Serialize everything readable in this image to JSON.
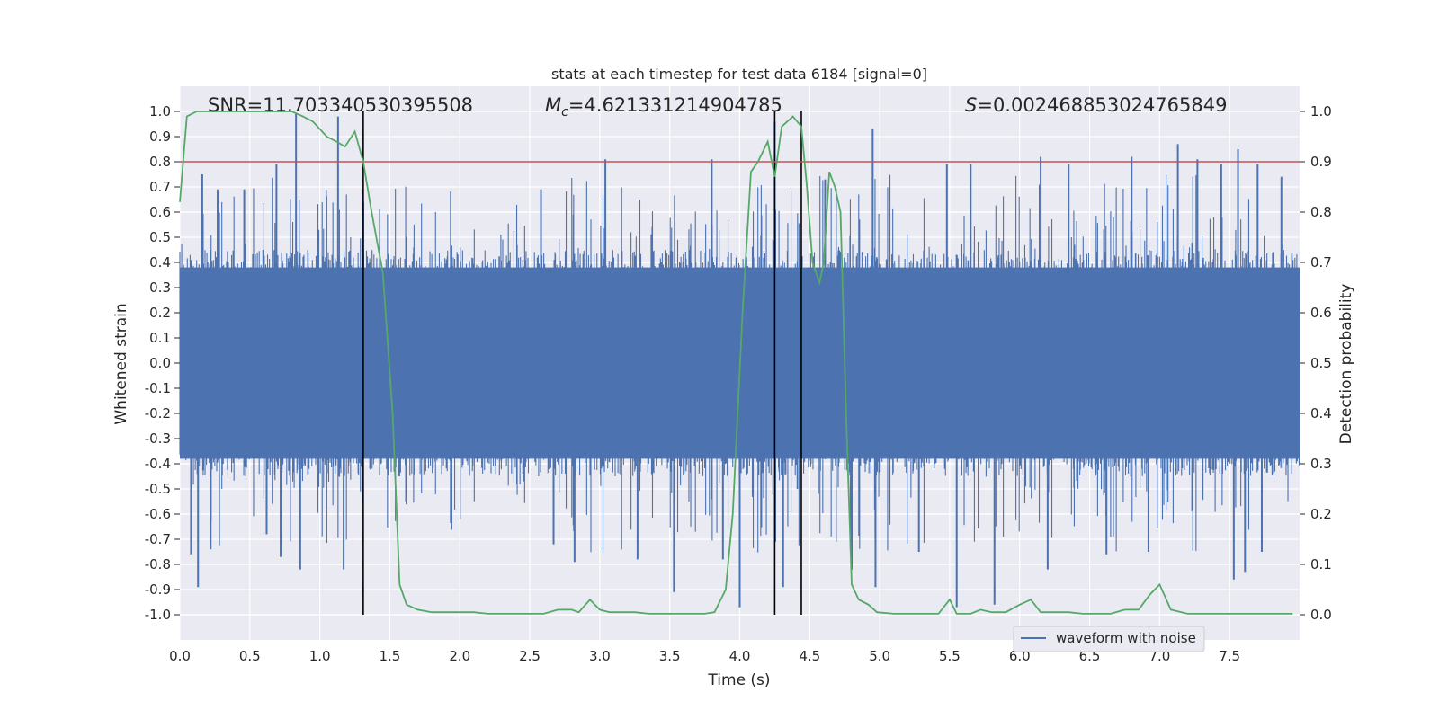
{
  "chart_data": {
    "type": "line",
    "title": "stats at each timestep for test data 6184 [signal=0]",
    "xlabel": "Time (s)",
    "ylabel": "Whitened strain",
    "ylabel_right": "Detection probability",
    "xlim": [
      0.0,
      8.0
    ],
    "ylim": [
      -1.1,
      1.1
    ],
    "ylim_right": [
      -0.05,
      1.05
    ],
    "x_ticks": [
      "0.0",
      "0.5",
      "1.0",
      "1.5",
      "2.0",
      "2.5",
      "3.0",
      "3.5",
      "4.0",
      "4.5",
      "5.0",
      "5.5",
      "6.0",
      "6.5",
      "7.0",
      "7.5"
    ],
    "y_ticks": [
      "-1.0",
      "-0.9",
      "-0.8",
      "-0.7",
      "-0.6",
      "-0.5",
      "-0.4",
      "-0.3",
      "-0.2",
      "-0.1",
      "0.0",
      "0.1",
      "0.2",
      "0.3",
      "0.4",
      "0.5",
      "0.6",
      "0.7",
      "0.8",
      "0.9",
      "1.0"
    ],
    "y_ticks_right": [
      "0.0",
      "0.1",
      "0.2",
      "0.3",
      "0.4",
      "0.5",
      "0.6",
      "0.7",
      "0.8",
      "0.9",
      "1.0"
    ],
    "grid": true,
    "legend_position": "lower-right",
    "annotations": {
      "snr": "SNR=11.703340530395508",
      "mc_symbol": "M",
      "mc_sub": "c",
      "mc_value": "=4.621331214904785",
      "s_symbol": "S",
      "s_value": "=0.002468853024765849"
    },
    "threshold": {
      "value": 0.9,
      "axis": "right",
      "color": "#c44e52"
    },
    "markers": {
      "x": [
        1.31,
        4.25,
        4.44
      ],
      "color": "#000000"
    },
    "series": [
      {
        "name": "waveform with noise",
        "axis": "left",
        "color": "#4c72b0",
        "envelope_typical": 0.45,
        "envelope_peak_max": 1.0,
        "spikes": [
          {
            "x": 0.08,
            "y": -0.76
          },
          {
            "x": 0.13,
            "y": -0.89
          },
          {
            "x": 0.16,
            "y": 0.75
          },
          {
            "x": 0.22,
            "y": -0.74
          },
          {
            "x": 0.27,
            "y": 0.69
          },
          {
            "x": 0.46,
            "y": 0.69
          },
          {
            "x": 0.62,
            "y": -0.68
          },
          {
            "x": 0.69,
            "y": 0.79
          },
          {
            "x": 0.72,
            "y": -0.77
          },
          {
            "x": 0.83,
            "y": 0.99
          },
          {
            "x": 0.86,
            "y": -0.82
          },
          {
            "x": 1.13,
            "y": 0.98
          },
          {
            "x": 1.17,
            "y": -0.82
          },
          {
            "x": 1.31,
            "y": 0.64
          },
          {
            "x": 2.58,
            "y": 0.69
          },
          {
            "x": 2.67,
            "y": -0.72
          },
          {
            "x": 2.82,
            "y": -0.79
          },
          {
            "x": 3.04,
            "y": 0.81
          },
          {
            "x": 3.27,
            "y": -0.78
          },
          {
            "x": 3.53,
            "y": -0.91
          },
          {
            "x": 3.8,
            "y": 0.81
          },
          {
            "x": 3.88,
            "y": -0.78
          },
          {
            "x": 4.0,
            "y": -0.97
          },
          {
            "x": 4.25,
            "y": 0.96
          },
          {
            "x": 4.31,
            "y": -0.89
          },
          {
            "x": 4.61,
            "y": 0.73
          },
          {
            "x": 4.8,
            "y": -0.82
          },
          {
            "x": 4.95,
            "y": 0.93
          },
          {
            "x": 4.97,
            "y": -0.89
          },
          {
            "x": 5.28,
            "y": -0.75
          },
          {
            "x": 5.48,
            "y": 0.79
          },
          {
            "x": 5.55,
            "y": -0.97
          },
          {
            "x": 5.65,
            "y": 0.79
          },
          {
            "x": 5.82,
            "y": -0.96
          },
          {
            "x": 6.15,
            "y": 0.82
          },
          {
            "x": 6.2,
            "y": -0.82
          },
          {
            "x": 6.35,
            "y": 0.79
          },
          {
            "x": 6.62,
            "y": -0.76
          },
          {
            "x": 6.8,
            "y": 0.82
          },
          {
            "x": 6.92,
            "y": -0.75
          },
          {
            "x": 7.13,
            "y": 0.87
          },
          {
            "x": 7.27,
            "y": 0.81
          },
          {
            "x": 7.44,
            "y": 0.79
          },
          {
            "x": 7.53,
            "y": -0.86
          },
          {
            "x": 7.56,
            "y": 0.85
          },
          {
            "x": 7.61,
            "y": -0.83
          },
          {
            "x": 7.7,
            "y": 0.79
          },
          {
            "x": 7.73,
            "y": -0.75
          },
          {
            "x": 7.87,
            "y": 0.74
          }
        ]
      },
      {
        "name": "Detection probability",
        "axis": "right",
        "color": "#55a868",
        "x": [
          0.0,
          0.05,
          0.12,
          0.2,
          0.4,
          0.6,
          0.8,
          0.88,
          0.95,
          1.05,
          1.12,
          1.18,
          1.25,
          1.31,
          1.37,
          1.45,
          1.52,
          1.57,
          1.62,
          1.7,
          1.8,
          1.9,
          2.0,
          2.1,
          2.2,
          2.3,
          2.4,
          2.5,
          2.6,
          2.7,
          2.8,
          2.85,
          2.93,
          3.0,
          3.07,
          3.15,
          3.25,
          3.35,
          3.45,
          3.55,
          3.65,
          3.75,
          3.82,
          3.9,
          3.95,
          4.02,
          4.08,
          4.13,
          4.2,
          4.25,
          4.3,
          4.38,
          4.44,
          4.48,
          4.52,
          4.57,
          4.6,
          4.64,
          4.68,
          4.72,
          4.76,
          4.8,
          4.85,
          4.92,
          4.98,
          5.1,
          5.2,
          5.3,
          5.42,
          5.5,
          5.55,
          5.58,
          5.65,
          5.72,
          5.8,
          5.9,
          6.0,
          6.08,
          6.15,
          6.25,
          6.35,
          6.45,
          6.55,
          6.65,
          6.75,
          6.85,
          6.93,
          7.0,
          7.08,
          7.2,
          7.35,
          7.5,
          7.65,
          7.8,
          7.95
        ],
        "y": [
          0.82,
          0.99,
          1.0,
          1.0,
          1.0,
          1.0,
          1.0,
          0.99,
          0.98,
          0.95,
          0.94,
          0.93,
          0.96,
          0.9,
          0.8,
          0.68,
          0.4,
          0.06,
          0.02,
          0.01,
          0.005,
          0.005,
          0.005,
          0.005,
          0.002,
          0.002,
          0.002,
          0.002,
          0.002,
          0.01,
          0.01,
          0.005,
          0.03,
          0.01,
          0.005,
          0.005,
          0.005,
          0.002,
          0.002,
          0.002,
          0.002,
          0.002,
          0.005,
          0.05,
          0.2,
          0.6,
          0.88,
          0.9,
          0.94,
          0.87,
          0.97,
          0.99,
          0.97,
          0.85,
          0.7,
          0.66,
          0.7,
          0.88,
          0.85,
          0.8,
          0.4,
          0.06,
          0.03,
          0.02,
          0.005,
          0.002,
          0.002,
          0.002,
          0.002,
          0.03,
          0.002,
          0.002,
          0.002,
          0.01,
          0.005,
          0.005,
          0.02,
          0.03,
          0.005,
          0.005,
          0.005,
          0.002,
          0.002,
          0.002,
          0.01,
          0.01,
          0.04,
          0.06,
          0.01,
          0.002,
          0.002,
          0.002,
          0.002,
          0.002,
          0.002
        ]
      }
    ]
  }
}
